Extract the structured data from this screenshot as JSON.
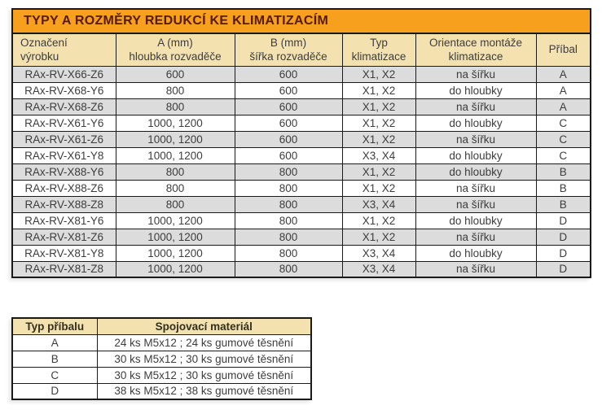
{
  "main_table": {
    "title": "TYPY A ROZMĚRY REDUKCÍ KE KLIMATIZACÍM",
    "columns": [
      {
        "lines": [
          "Označení",
          "výrobku"
        ]
      },
      {
        "lines": [
          "A (mm)",
          "hloubka rozvaděče"
        ]
      },
      {
        "lines": [
          "B (mm)",
          "šířka rozvaděče"
        ]
      },
      {
        "lines": [
          "Typ",
          "klimatizace"
        ]
      },
      {
        "lines": [
          "Orientace montáže",
          "klimatizace"
        ]
      },
      {
        "lines": [
          "Příbal"
        ]
      }
    ],
    "rows": [
      [
        "RAx-RV-X66-Z6",
        "600",
        "600",
        "X1, X2",
        "na šířku",
        "A"
      ],
      [
        "RAx-RV-X68-Y6",
        "800",
        "600",
        "X1, X2",
        "do hloubky",
        "A"
      ],
      [
        "RAx-RV-X68-Z6",
        "800",
        "600",
        "X1, X2",
        "na šířku",
        "A"
      ],
      [
        "RAx-RV-X61-Y6",
        "1000, 1200",
        "600",
        "X1, X2",
        "do hloubky",
        "C"
      ],
      [
        "RAx-RV-X61-Z6",
        "1000, 1200",
        "600",
        "X1, X2",
        "na šířku",
        "C"
      ],
      [
        "RAx-RV-X61-Y8",
        "1000, 1200",
        "600",
        "X3, X4",
        "do hloubky",
        "C"
      ],
      [
        "RAx-RV-X88-Y6",
        "800",
        "800",
        "X1, X2",
        "do hloubky",
        "B"
      ],
      [
        "RAx-RV-X88-Z6",
        "800",
        "800",
        "X1, X2",
        "na šířku",
        "B"
      ],
      [
        "RAx-RV-X88-Z8",
        "800",
        "800",
        "X3, X4",
        "na šířku",
        "B"
      ],
      [
        "RAx-RV-X81-Y6",
        "1000, 1200",
        "800",
        "X1, X2",
        "do hloubky",
        "D"
      ],
      [
        "RAx-RV-X81-Z6",
        "1000, 1200",
        "800",
        "X1, X2",
        "na šířku",
        "D"
      ],
      [
        "RAx-RV-X81-Y8",
        "1000, 1200",
        "800",
        "X3, X4",
        "do hloubky",
        "D"
      ],
      [
        "RAx-RV-X81-Z8",
        "1000, 1200",
        "800",
        "X3, X4",
        "na šířku",
        "D"
      ]
    ]
  },
  "accessory_table": {
    "columns": [
      "Typ příbalu",
      "Spojovací materiál"
    ],
    "rows": [
      [
        "A",
        "24 ks M5x12 ; 24 ks gumové těsnění"
      ],
      [
        "B",
        "30 ks M5x12 ; 30 ks gumové těsnění"
      ],
      [
        "C",
        "30 ks M5x12 ; 30 ks gumové těsnění"
      ],
      [
        "D",
        "38 ks M5x12 ; 38 ks gumové těsnění"
      ]
    ]
  },
  "colors": {
    "title_bg": "#F6A01E",
    "title_text": "#571A00",
    "header_bg": "#F3E2B0",
    "row_shaded": "#DCDCDC",
    "row_white": "#FFFFFF",
    "border": "#1A1A1A",
    "cell_text": "#3D3D3D"
  }
}
